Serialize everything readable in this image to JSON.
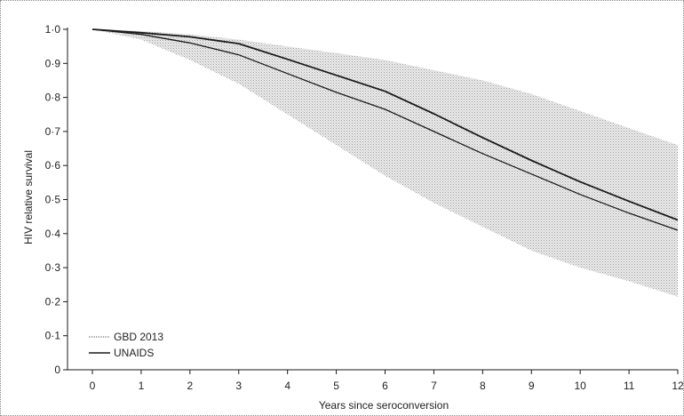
{
  "chart_data": {
    "type": "line",
    "title": "",
    "xlabel": "Years since seroconversion",
    "ylabel": "HIV relative survival",
    "xlim": [
      0,
      12
    ],
    "ylim": [
      0,
      1.0
    ],
    "x_ticks": [
      0,
      1,
      2,
      3,
      4,
      5,
      6,
      7,
      8,
      9,
      10,
      11,
      12
    ],
    "x_tick_labels": [
      "0",
      "1",
      "2",
      "3",
      "4",
      "5",
      "6",
      "7",
      "8",
      "9",
      "10",
      "11",
      "12"
    ],
    "y_ticks": [
      0,
      0.1,
      0.2,
      0.3,
      0.4,
      0.5,
      0.6,
      0.7,
      0.8,
      0.9,
      1.0
    ],
    "y_tick_labels": [
      "0",
      "0·1",
      "0·2",
      "0·3",
      "0·4",
      "0·5",
      "0·6",
      "0·7",
      "0·8",
      "0·9",
      "1·0"
    ],
    "grid": false,
    "legend_position": "bottom-left",
    "x": [
      0,
      1,
      2,
      3,
      4,
      5,
      6,
      7,
      8,
      9,
      10,
      11,
      12
    ],
    "series": [
      {
        "name": "GBD 2013",
        "style": "line-with-uncertainty-band",
        "values": [
          1.0,
          0.985,
          0.96,
          0.925,
          0.87,
          0.815,
          0.765,
          0.7,
          0.635,
          0.575,
          0.515,
          0.46,
          0.41
        ],
        "lower": [
          1.0,
          0.97,
          0.91,
          0.84,
          0.75,
          0.66,
          0.57,
          0.49,
          0.42,
          0.35,
          0.3,
          0.26,
          0.215
        ],
        "upper": [
          1.0,
          0.995,
          0.985,
          0.97,
          0.95,
          0.93,
          0.91,
          0.88,
          0.85,
          0.81,
          0.76,
          0.71,
          0.66
        ],
        "band_color": "#c4c4c4"
      },
      {
        "name": "UNAIDS",
        "style": "line",
        "values": [
          1.0,
          0.99,
          0.978,
          0.958,
          0.912,
          0.865,
          0.818,
          0.752,
          0.682,
          0.615,
          0.552,
          0.495,
          0.44
        ]
      }
    ],
    "line_color": "#1a1a1a"
  }
}
